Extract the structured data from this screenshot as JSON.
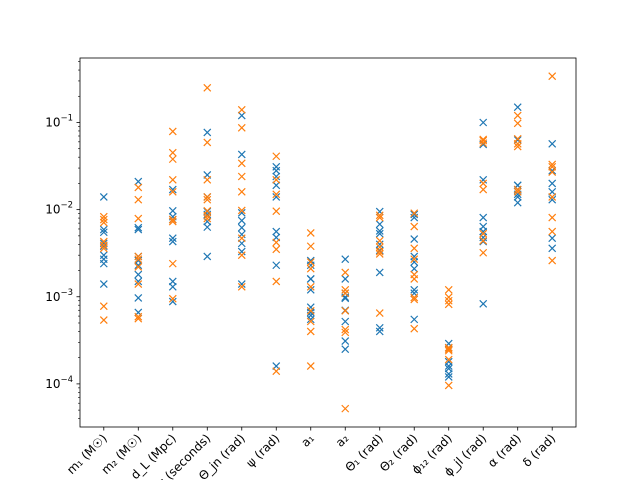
{
  "chart_data": {
    "type": "scatter",
    "marker": "x",
    "title": "",
    "xlabel": "",
    "ylabel": "",
    "yscale": "log",
    "ylim": [
      3.2e-05,
      0.55
    ],
    "grid": false,
    "legend": "none",
    "categories": [
      "m₁ (M☉)",
      "m₂ (M☉)",
      "d_L (Mpc)",
      "t_c (seconds)",
      "Θ_jn (rad)",
      "ψ (rad)",
      "a₁",
      "a₂",
      "Θ₁ (rad)",
      "Θ₂ (rad)",
      "ϕ₁₂ (rad)",
      "ϕ_jl (rad)",
      "α (rad)",
      "δ (rad)"
    ],
    "y_ticks": [
      {
        "value": 0.0001,
        "base": "10",
        "exp": "−4"
      },
      {
        "value": 0.001,
        "base": "10",
        "exp": "−3"
      },
      {
        "value": 0.01,
        "base": "10",
        "exp": "−2"
      },
      {
        "value": 0.1,
        "base": "10",
        "exp": "−1"
      }
    ],
    "series": [
      {
        "color": "#1f77b4",
        "values": [
          [
            0.014,
            0.0059,
            0.0055,
            0.0041,
            0.0038,
            0.003,
            0.0027,
            0.0024,
            0.0014
          ],
          [
            0.021,
            0.0062,
            0.0059,
            0.0029,
            0.0026,
            0.0023,
            0.0018,
            0.0015,
            0.00097,
            0.00066
          ],
          [
            0.017,
            0.0097,
            0.0083,
            0.0077,
            0.0047,
            0.0043,
            0.0015,
            0.0013,
            0.00088
          ],
          [
            0.077,
            0.025,
            0.014,
            0.0095,
            0.0088,
            0.0073,
            0.0063,
            0.0029
          ],
          [
            0.12,
            0.043,
            0.0092,
            0.0075,
            0.0062,
            0.0052,
            0.0041,
            0.0033,
            0.0014
          ],
          [
            0.031,
            0.028,
            0.024,
            0.019,
            0.014,
            0.0056,
            0.0048,
            0.0023,
            0.00016
          ],
          [
            0.0026,
            0.0023,
            0.0016,
            0.0016,
            0.0012,
            0.00076,
            0.00066,
            0.00061,
            0.00055
          ],
          [
            0.0027,
            0.0016,
            0.0011,
            0.00099,
            0.00096,
            0.0007,
            0.00052,
            0.00031,
            0.00025
          ],
          [
            0.0095,
            0.0068,
            0.0057,
            0.0053,
            0.004,
            0.0034,
            0.0019,
            0.00044,
            0.0004
          ],
          [
            0.0088,
            0.0081,
            0.0046,
            0.0029,
            0.0025,
            0.0021,
            0.0012,
            0.0011,
            0.00055
          ],
          [
            0.00029,
            0.00026,
            0.00018,
            0.00016,
            0.00015,
            0.00013,
            0.00012
          ],
          [
            0.1,
            0.056,
            0.022,
            0.0081,
            0.0064,
            0.0056,
            0.0048,
            0.0043,
            0.00083
          ],
          [
            0.15,
            0.063,
            0.019,
            0.019,
            0.017,
            0.015,
            0.014,
            0.012
          ],
          [
            0.057,
            0.028,
            0.02,
            0.016,
            0.013,
            0.0047,
            0.0036
          ]
        ]
      },
      {
        "color": "#ff7f0e",
        "values": [
          [
            0.0083,
            0.0077,
            0.0071,
            0.0043,
            0.0039,
            0.0036,
            0.00078,
            0.00054
          ],
          [
            0.018,
            0.013,
            0.0079,
            0.0029,
            0.0027,
            0.0022,
            0.0014,
            0.00059,
            0.00056
          ],
          [
            0.079,
            0.045,
            0.038,
            0.022,
            0.016,
            0.0077,
            0.0073,
            0.0024,
            0.00095
          ],
          [
            0.25,
            0.059,
            0.022,
            0.014,
            0.013,
            0.0097,
            0.0085,
            0.0079
          ],
          [
            0.14,
            0.087,
            0.034,
            0.024,
            0.016,
            0.0098,
            0.0047,
            0.003,
            0.0013
          ],
          [
            0.041,
            0.022,
            0.015,
            0.0096,
            0.0042,
            0.0035,
            0.0015,
            0.00014
          ],
          [
            0.0054,
            0.0038,
            0.0025,
            0.0021,
            0.0013,
            0.00069,
            0.00052,
            0.0004,
            0.00016
          ],
          [
            0.0019,
            0.0012,
            0.0011,
            0.00069,
            0.00042,
            0.00039,
            5.2e-05
          ],
          [
            0.0086,
            0.0081,
            0.0044,
            0.0037,
            0.0033,
            0.0031,
            0.00065
          ],
          [
            0.0091,
            0.0064,
            0.0036,
            0.0027,
            0.0018,
            0.0016,
            0.00098,
            0.00093,
            0.00043
          ],
          [
            0.0012,
            0.00099,
            0.0009,
            0.00082,
            0.00026,
            0.00025,
            0.00024,
            0.00019,
            9.6e-05
          ],
          [
            0.064,
            0.062,
            0.058,
            0.02,
            0.017,
            0.0053,
            0.0044,
            0.0032
          ],
          [
            0.12,
            0.098,
            0.065,
            0.057,
            0.053,
            0.017,
            0.016
          ],
          [
            0.34,
            0.033,
            0.031,
            0.027,
            0.014,
            0.0081,
            0.0056,
            0.0026
          ]
        ]
      }
    ]
  }
}
